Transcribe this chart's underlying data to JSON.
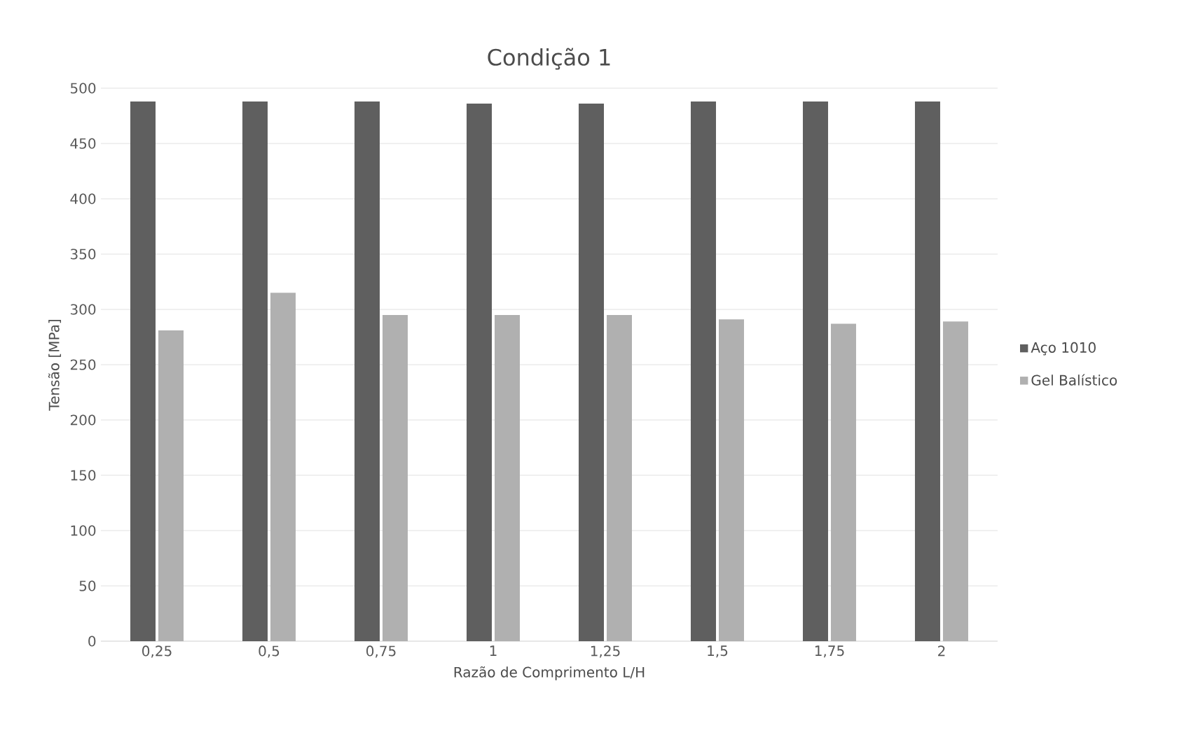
{
  "chart_data": {
    "type": "bar",
    "title": "Condição 1",
    "xlabel": "Razão de Comprimento L/H",
    "ylabel": "Tensão [MPa]",
    "categories": [
      "0,25",
      "0,5",
      "0,75",
      "1",
      "1,25",
      "1,5",
      "1,75",
      "2"
    ],
    "series": [
      {
        "name": "Aço 1010",
        "color": "#5f5f5f",
        "values": [
          488,
          488,
          488,
          486,
          486,
          488,
          488,
          488
        ]
      },
      {
        "name": "Gel Balístico",
        "color": "#b0b0b0",
        "values": [
          281,
          315,
          295,
          295,
          295,
          291,
          287,
          289
        ]
      }
    ],
    "ylim": [
      0,
      500
    ],
    "yticks": [
      0,
      50,
      100,
      150,
      200,
      250,
      300,
      350,
      400,
      450,
      500
    ],
    "grid": "y",
    "legend": "right"
  }
}
